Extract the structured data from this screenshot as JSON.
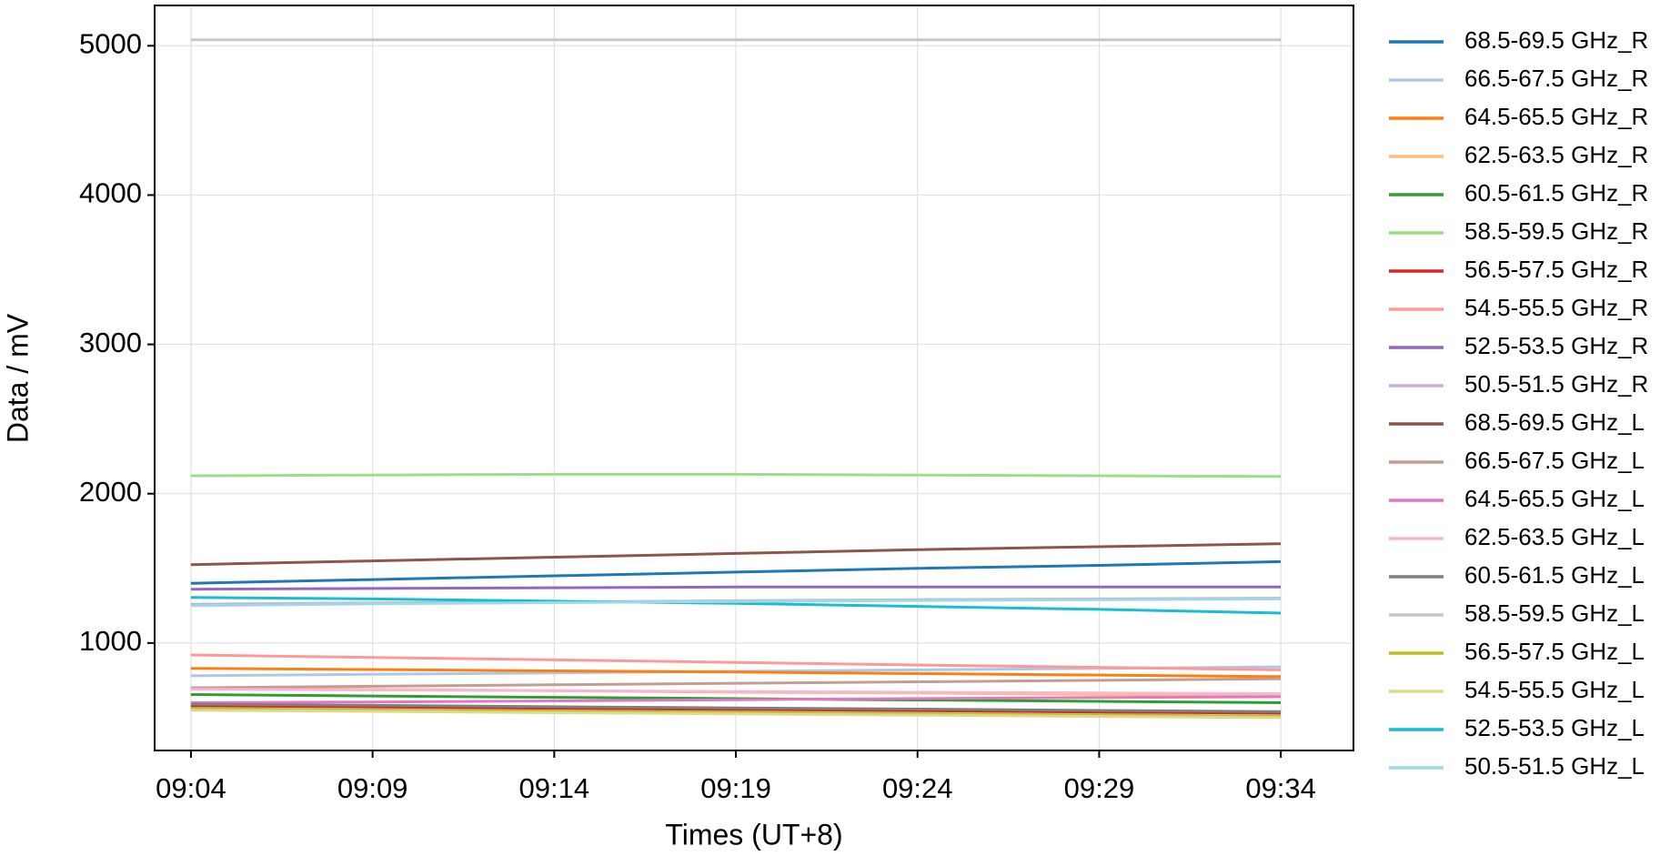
{
  "chart_data": {
    "type": "line",
    "x_label": "Times (UT+8)",
    "y_label": "Data / mV",
    "x": [
      "09:04",
      "09:09",
      "09:14",
      "09:19",
      "09:24",
      "09:29",
      "09:34"
    ],
    "xlim": [
      "09:03",
      "09:36"
    ],
    "xticks": [
      "09:04",
      "09:09",
      "09:14",
      "09:19",
      "09:24",
      "09:29",
      "09:34"
    ],
    "ylim": [
      280,
      5270
    ],
    "yticks": [
      1000,
      2000,
      3000,
      4000,
      5000
    ],
    "grid": true,
    "legend": "outside right",
    "series": [
      {
        "name": "68.5-69.5 GHz_R",
        "color": "#1f77b4",
        "values": [
          1400,
          1425,
          1450,
          1475,
          1500,
          1520,
          1545
        ]
      },
      {
        "name": "66.5-67.5 GHz_R",
        "color": "#aec7e8",
        "values": [
          780,
          790,
          800,
          810,
          820,
          830,
          840
        ]
      },
      {
        "name": "64.5-65.5 GHz_R",
        "color": "#ff7f0e",
        "values": [
          830,
          822,
          813,
          805,
          795,
          785,
          775
        ]
      },
      {
        "name": "62.5-63.5 GHz_R",
        "color": "#ffbb78",
        "values": [
          700,
          690,
          680,
          670,
          665,
          655,
          650
        ]
      },
      {
        "name": "60.5-61.5 GHz_R",
        "color": "#2ca02c",
        "values": [
          655,
          645,
          636,
          627,
          618,
          609,
          600
        ]
      },
      {
        "name": "58.5-59.5 GHz_R",
        "color": "#98df8a",
        "values": [
          2120,
          2125,
          2130,
          2130,
          2125,
          2120,
          2115
        ]
      },
      {
        "name": "56.5-57.5 GHz_R",
        "color": "#d62728",
        "values": [
          580,
          572,
          563,
          555,
          547,
          538,
          530
        ]
      },
      {
        "name": "54.5-55.5 GHz_R",
        "color": "#ff9896",
        "values": [
          920,
          903,
          887,
          870,
          853,
          837,
          820
        ]
      },
      {
        "name": "52.5-53.5 GHz_R",
        "color": "#9467bd",
        "values": [
          1360,
          1365,
          1370,
          1375,
          1375,
          1375,
          1375
        ]
      },
      {
        "name": "50.5-51.5 GHz_R",
        "color": "#c5b0d5",
        "values": [
          1260,
          1268,
          1275,
          1283,
          1290,
          1295,
          1300
        ]
      },
      {
        "name": "68.5-69.5 GHz_L",
        "color": "#8c564b",
        "values": [
          1525,
          1550,
          1575,
          1600,
          1625,
          1645,
          1665
        ]
      },
      {
        "name": "66.5-67.5 GHz_L",
        "color": "#c49c94",
        "values": [
          700,
          710,
          720,
          730,
          740,
          750,
          760
        ]
      },
      {
        "name": "64.5-65.5 GHz_L",
        "color": "#e377c2",
        "values": [
          600,
          605,
          612,
          620,
          628,
          635,
          640
        ]
      },
      {
        "name": "62.5-63.5 GHz_L",
        "color": "#f7b6d2",
        "values": [
          690,
          685,
          680,
          675,
          670,
          665,
          660
        ]
      },
      {
        "name": "60.5-61.5 GHz_L",
        "color": "#7f7f7f",
        "values": [
          590,
          582,
          573,
          565,
          557,
          548,
          540
        ]
      },
      {
        "name": "58.5-59.5 GHz_L",
        "color": "#c7c7c7",
        "values": [
          5040,
          5040,
          5040,
          5040,
          5040,
          5040,
          5040
        ]
      },
      {
        "name": "56.5-57.5 GHz_L",
        "color": "#bcbd22",
        "values": [
          560,
          552,
          543,
          535,
          527,
          518,
          510
        ]
      },
      {
        "name": "54.5-55.5 GHz_L",
        "color": "#dbdb8d",
        "values": [
          550,
          542,
          533,
          525,
          517,
          508,
          500
        ]
      },
      {
        "name": "52.5-53.5 GHz_L",
        "color": "#17becf",
        "values": [
          1305,
          1295,
          1280,
          1265,
          1245,
          1225,
          1200
        ]
      },
      {
        "name": "50.5-51.5 GHz_L",
        "color": "#9edae5",
        "values": [
          1250,
          1262,
          1270,
          1278,
          1285,
          1290,
          1295
        ]
      }
    ]
  }
}
